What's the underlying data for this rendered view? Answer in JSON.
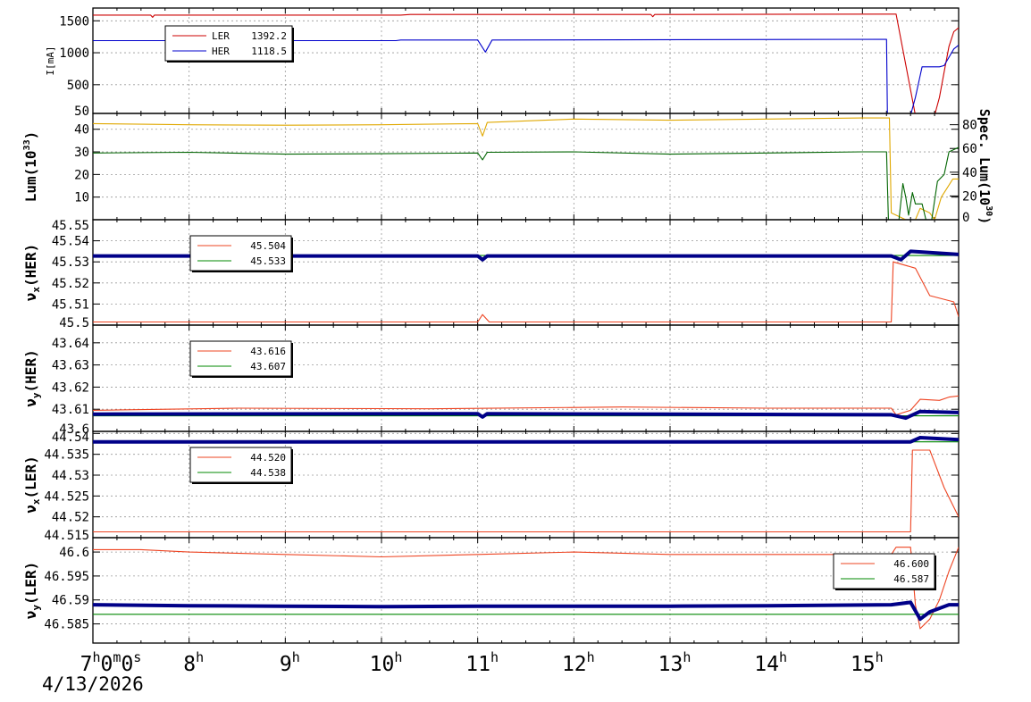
{
  "date_label": "4/13/2026",
  "time_ticks": [
    {
      "h": 7,
      "label": "7",
      "sup": "h",
      "label2": "0",
      "sup2": "m",
      "label3": "0",
      "sup3": "s"
    },
    {
      "h": 8,
      "label": "8",
      "sup": "h"
    },
    {
      "h": 9,
      "label": "9",
      "sup": "h"
    },
    {
      "h": 10,
      "label": "10",
      "sup": "h"
    },
    {
      "h": 11,
      "label": "11",
      "sup": "h"
    },
    {
      "h": 12,
      "label": "12",
      "sup": "h"
    },
    {
      "h": 13,
      "label": "13",
      "sup": "h"
    },
    {
      "h": 14,
      "label": "14",
      "sup": "h"
    },
    {
      "h": 15,
      "label": "15",
      "sup": "h"
    }
  ],
  "chart_data": [
    {
      "type": "line",
      "id": "current",
      "ylabel": "I[mA]",
      "ylim": [
        50,
        1700
      ],
      "yticks": [
        {
          "v": 50,
          "t": "50"
        },
        {
          "v": 500,
          "t": "500"
        },
        {
          "v": 1000,
          "t": "1000"
        },
        {
          "v": 1500,
          "t": "1500"
        }
      ],
      "xlim_hours": [
        7,
        16.0
      ],
      "grid": true,
      "legend": "top-left",
      "series": [
        {
          "name": "LER",
          "legend_value": "1392.2",
          "color": "#cc0000",
          "points": [
            [
              7,
              1590
            ],
            [
              7.6,
              1590
            ],
            [
              7.62,
              1555
            ],
            [
              7.64,
              1590
            ],
            [
              10.2,
              1590
            ],
            [
              10.3,
              1600
            ],
            [
              12.8,
              1600
            ],
            [
              12.82,
              1565
            ],
            [
              12.84,
              1600
            ],
            [
              15.3,
              1605
            ],
            [
              15.35,
              1605
            ],
            [
              15.55,
              20
            ],
            [
              15.75,
              20
            ],
            [
              15.8,
              300
            ],
            [
              15.85,
              700
            ],
            [
              15.9,
              1100
            ],
            [
              15.95,
              1330
            ],
            [
              16.0,
              1392
            ]
          ]
        },
        {
          "name": "HER",
          "legend_value": "1118.5",
          "color": "#0000cc",
          "points": [
            [
              7,
              1190
            ],
            [
              10.15,
              1190
            ],
            [
              10.2,
              1200
            ],
            [
              11.0,
              1200
            ],
            [
              11.08,
              1010
            ],
            [
              11.15,
              1200
            ],
            [
              15.25,
              1210
            ],
            [
              15.26,
              20
            ],
            [
              15.5,
              20
            ],
            [
              15.55,
              300
            ],
            [
              15.62,
              780
            ],
            [
              15.8,
              780
            ],
            [
              15.85,
              800
            ],
            [
              15.95,
              1060
            ],
            [
              16.0,
              1118
            ]
          ]
        }
      ]
    },
    {
      "type": "line",
      "id": "luminosity",
      "ylabel": "Lum(10",
      "ylabel_sup": "33",
      "ylabel_tail": ")",
      "ylim": [
        0,
        47
      ],
      "yticks": [
        {
          "v": 10,
          "t": "10"
        },
        {
          "v": 20,
          "t": "20"
        },
        {
          "v": 30,
          "t": "30"
        },
        {
          "v": 40,
          "t": "40"
        }
      ],
      "y2label": "Spec. Lum(10",
      "y2label_sup": "30",
      "y2label_tail": ")",
      "y2lim": [
        0,
        89.5
      ],
      "y2ticks": [
        {
          "v": 0,
          "t": "0"
        },
        {
          "v": 20,
          "t": "20"
        },
        {
          "v": 40,
          "t": "40"
        },
        {
          "v": 60,
          "t": "60"
        },
        {
          "v": 80,
          "t": "80"
        }
      ],
      "xlim_hours": [
        7,
        16.0
      ],
      "grid": true,
      "series": [
        {
          "color": "#e0a800",
          "points": [
            [
              7,
              42.5
            ],
            [
              8,
              42
            ],
            [
              9,
              41.8
            ],
            [
              10,
              42
            ],
            [
              11,
              42.5
            ],
            [
              11.05,
              37
            ],
            [
              11.1,
              43
            ],
            [
              12,
              44.5
            ],
            [
              13,
              44
            ],
            [
              14,
              44.5
            ],
            [
              15,
              45
            ],
            [
              15.28,
              45
            ],
            [
              15.3,
              3
            ],
            [
              15.45,
              0
            ],
            [
              15.55,
              0
            ],
            [
              15.6,
              5
            ],
            [
              15.7,
              3
            ],
            [
              15.75,
              0
            ],
            [
              15.82,
              10
            ],
            [
              15.88,
              14
            ],
            [
              15.94,
              18
            ],
            [
              16.0,
              18
            ]
          ]
        },
        {
          "color": "#006400",
          "points": [
            [
              7,
              29.5
            ],
            [
              8,
              29.8
            ],
            [
              9,
              29
            ],
            [
              10,
              29.2
            ],
            [
              11,
              29.5
            ],
            [
              11.05,
              26.5
            ],
            [
              11.1,
              29.8
            ],
            [
              12,
              30
            ],
            [
              13,
              29
            ],
            [
              14,
              29.5
            ],
            [
              15,
              30
            ],
            [
              15.25,
              30
            ],
            [
              15.27,
              0
            ],
            [
              15.38,
              0
            ],
            [
              15.42,
              16
            ],
            [
              15.45,
              10
            ],
            [
              15.48,
              2
            ],
            [
              15.52,
              12
            ],
            [
              15.55,
              7
            ],
            [
              15.62,
              7
            ],
            [
              15.66,
              0
            ],
            [
              15.72,
              0
            ],
            [
              15.78,
              17
            ],
            [
              15.85,
              20
            ],
            [
              15.9,
              30
            ],
            [
              16.0,
              32
            ]
          ]
        }
      ]
    },
    {
      "type": "line",
      "id": "nux-her",
      "ylabel": "ν",
      "ylabel_sub": "x",
      "ylabel_tail": "(HER)",
      "ylim": [
        45.5,
        45.55
      ],
      "yticks": [
        {
          "v": 45.5,
          "t": "45.5"
        },
        {
          "v": 45.51,
          "t": "45.51"
        },
        {
          "v": 45.52,
          "t": "45.52"
        },
        {
          "v": 45.53,
          "t": "45.53"
        },
        {
          "v": 45.54,
          "t": "45.54"
        },
        {
          "v": 45.55,
          "t": "45.55"
        }
      ],
      "xlim_hours": [
        7,
        16.0
      ],
      "grid": true,
      "legend": "top-left",
      "series": [
        {
          "legend_value": "45.504",
          "color": "#ee4422",
          "points": [
            [
              7,
              45.5015
            ],
            [
              11,
              45.5015
            ],
            [
              11.05,
              45.505
            ],
            [
              11.12,
              45.5015
            ],
            [
              15.3,
              45.5015
            ],
            [
              15.32,
              45.53
            ],
            [
              15.55,
              45.527
            ],
            [
              15.7,
              45.514
            ],
            [
              15.95,
              45.511
            ],
            [
              16.0,
              45.504
            ]
          ]
        },
        {
          "legend_value": "45.533",
          "color": "#008800",
          "points": [
            [
              7,
              45.533
            ],
            [
              16.0,
              45.533
            ]
          ]
        },
        {
          "color": "#000088",
          "thick": true,
          "points": [
            [
              7,
              45.5328
            ],
            [
              11,
              45.5328
            ],
            [
              11.05,
              45.531
            ],
            [
              11.1,
              45.5328
            ],
            [
              15.3,
              45.5328
            ],
            [
              15.4,
              45.531
            ],
            [
              15.5,
              45.535
            ],
            [
              16.0,
              45.5335
            ]
          ]
        }
      ]
    },
    {
      "type": "line",
      "id": "nuy-her",
      "ylabel": "ν",
      "ylabel_sub": "y",
      "ylabel_tail": "(HER)",
      "ylim": [
        43.6,
        43.648
      ],
      "yticks": [
        {
          "v": 43.6,
          "t": "43.6"
        },
        {
          "v": 43.61,
          "t": "43.61"
        },
        {
          "v": 43.62,
          "t": "43.62"
        },
        {
          "v": 43.63,
          "t": "43.63"
        },
        {
          "v": 43.64,
          "t": "43.64"
        }
      ],
      "xlim_hours": [
        7,
        16.0
      ],
      "grid": true,
      "legend": "top-left",
      "series": [
        {
          "legend_value": "43.616",
          "color": "#ee4422",
          "points": [
            [
              7,
              43.6095
            ],
            [
              8.5,
              43.6105
            ],
            [
              10.5,
              43.6102
            ],
            [
              12.5,
              43.611
            ],
            [
              14,
              43.6105
            ],
            [
              15.3,
              43.6105
            ],
            [
              15.35,
              43.6075
            ],
            [
              15.5,
              43.6095
            ],
            [
              15.6,
              43.6145
            ],
            [
              15.8,
              43.614
            ],
            [
              15.9,
              43.6155
            ],
            [
              16.0,
              43.616
            ]
          ]
        },
        {
          "legend_value": "43.607",
          "color": "#008800",
          "points": [
            [
              7,
              43.607
            ],
            [
              16.0,
              43.607
            ]
          ]
        },
        {
          "color": "#000088",
          "thick": true,
          "points": [
            [
              7,
              43.6078
            ],
            [
              11,
              43.608
            ],
            [
              11.05,
              43.6065
            ],
            [
              11.1,
              43.608
            ],
            [
              15.3,
              43.6075
            ],
            [
              15.45,
              43.606
            ],
            [
              15.6,
              43.609
            ],
            [
              16.0,
              43.6085
            ]
          ]
        }
      ]
    },
    {
      "type": "line",
      "id": "nux-ler",
      "ylabel": "ν",
      "ylabel_sub": "x",
      "ylabel_tail": "(LER)",
      "ylim": [
        44.515,
        44.5405
      ],
      "yticks": [
        {
          "v": 44.515,
          "t": "44.515"
        },
        {
          "v": 44.52,
          "t": "44.52"
        },
        {
          "v": 44.525,
          "t": "44.525"
        },
        {
          "v": 44.53,
          "t": "44.53"
        },
        {
          "v": 44.535,
          "t": "44.535"
        },
        {
          "v": 44.54,
          "t": "44.54"
        }
      ],
      "xlim_hours": [
        7,
        16.0
      ],
      "grid": true,
      "legend": "top-left",
      "series": [
        {
          "legend_value": "44.520",
          "color": "#ee4422",
          "points": [
            [
              7,
              44.5164
            ],
            [
              15.5,
              44.5164
            ],
            [
              15.52,
              44.536
            ],
            [
              15.7,
              44.536
            ],
            [
              15.85,
              44.527
            ],
            [
              16.0,
              44.52
            ]
          ]
        },
        {
          "legend_value": "44.538",
          "color": "#008800",
          "points": [
            [
              7,
              44.538
            ],
            [
              16.0,
              44.538
            ]
          ]
        },
        {
          "color": "#000088",
          "thick": true,
          "points": [
            [
              7,
              44.538
            ],
            [
              15.5,
              44.538
            ],
            [
              15.6,
              44.539
            ],
            [
              16.0,
              44.5385
            ]
          ]
        }
      ]
    },
    {
      "type": "line",
      "id": "nuy-ler",
      "ylabel": "ν",
      "ylabel_sub": "y",
      "ylabel_tail": "(LER)",
      "ylim": [
        46.581,
        46.603
      ],
      "yticks": [
        {
          "v": 46.585,
          "t": "46.585"
        },
        {
          "v": 46.59,
          "t": "46.59"
        },
        {
          "v": 46.595,
          "t": "46.595"
        },
        {
          "v": 46.6,
          "t": "46.6"
        }
      ],
      "xlim_hours": [
        7,
        16.0
      ],
      "grid": true,
      "legend": "top-right",
      "series": [
        {
          "legend_value": "46.600",
          "color": "#ee4422",
          "points": [
            [
              7,
              46.6005
            ],
            [
              7.5,
              46.6005
            ],
            [
              8,
              46.6
            ],
            [
              9,
              46.5995
            ],
            [
              10,
              46.599
            ],
            [
              11,
              46.5995
            ],
            [
              12,
              46.6
            ],
            [
              13,
              46.5995
            ],
            [
              14,
              46.5995
            ],
            [
              15.3,
              46.5995
            ],
            [
              15.35,
              46.601
            ],
            [
              15.5,
              46.601
            ],
            [
              15.55,
              46.589
            ],
            [
              15.6,
              46.584
            ],
            [
              15.7,
              46.586
            ],
            [
              15.8,
              46.59
            ],
            [
              15.9,
              46.596
            ],
            [
              16.0,
              46.601
            ]
          ]
        },
        {
          "legend_value": "46.587",
          "color": "#008800",
          "points": [
            [
              7,
              46.587
            ],
            [
              16.0,
              46.587
            ]
          ]
        },
        {
          "color": "#000088",
          "thick": true,
          "points": [
            [
              7,
              46.589
            ],
            [
              8,
              46.5888
            ],
            [
              9,
              46.5887
            ],
            [
              10,
              46.5886
            ],
            [
              11,
              46.5887
            ],
            [
              12,
              46.5887
            ],
            [
              13,
              46.5887
            ],
            [
              14,
              46.5888
            ],
            [
              15.3,
              46.589
            ],
            [
              15.5,
              46.5895
            ],
            [
              15.6,
              46.586
            ],
            [
              15.7,
              46.5875
            ],
            [
              15.9,
              46.589
            ],
            [
              16.0,
              46.589
            ]
          ]
        }
      ]
    }
  ]
}
